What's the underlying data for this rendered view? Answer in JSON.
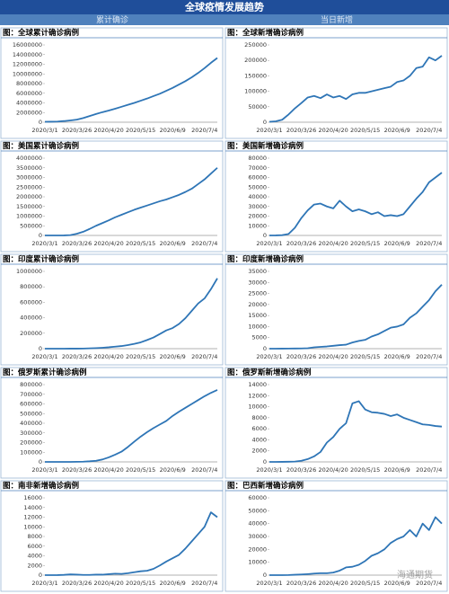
{
  "header": {
    "title": "全球疫情发展趋势",
    "left": "累计确诊",
    "right": "当日新增"
  },
  "watermark": "海通期货",
  "chart_data": [
    {
      "type": "line",
      "title": "图：全球累计确诊病例",
      "color": "#2e75b6",
      "categories": [
        "2020/3/1",
        null,
        null,
        null,
        null,
        "2020/3/26",
        null,
        null,
        null,
        null,
        "2020/4/20",
        null,
        null,
        null,
        null,
        "2020/5/15",
        null,
        null,
        null,
        null,
        "2020/6/9",
        null,
        null,
        null,
        null,
        "2020/7/4",
        null,
        null
      ],
      "values": [
        88000,
        105000,
        145000,
        240000,
        380000,
        530000,
        860000,
        1270000,
        1700000,
        2080000,
        2420000,
        2800000,
        3200000,
        3600000,
        4000000,
        4450000,
        4900000,
        5400000,
        5900000,
        6500000,
        7100000,
        7800000,
        8500000,
        9300000,
        10200000,
        11200000,
        12300000,
        13300000
      ],
      "ylim": [
        0,
        16000000
      ],
      "yticks": [
        0,
        2000000,
        4000000,
        6000000,
        8000000,
        10000000,
        12000000,
        14000000,
        16000000
      ]
    },
    {
      "type": "line",
      "title": "图：全球新增确诊病例",
      "color": "#2e75b6",
      "categories": [
        "2020/3/1",
        null,
        null,
        null,
        null,
        "2020/3/26",
        null,
        null,
        null,
        null,
        "2020/4/20",
        null,
        null,
        null,
        null,
        "2020/5/15",
        null,
        null,
        null,
        null,
        "2020/6/9",
        null,
        null,
        null,
        null,
        "2020/7/4",
        null,
        null
      ],
      "values": [
        1500,
        3000,
        8000,
        25000,
        45000,
        62000,
        80000,
        85000,
        78000,
        90000,
        80000,
        85000,
        75000,
        90000,
        95000,
        95000,
        100000,
        105000,
        110000,
        115000,
        130000,
        135000,
        150000,
        175000,
        180000,
        210000,
        200000,
        215000
      ],
      "ylim": [
        0,
        250000
      ],
      "yticks": [
        0,
        50000,
        100000,
        150000,
        200000,
        250000
      ]
    },
    {
      "type": "line",
      "title": "图：美国累计确诊病例",
      "color": "#2e75b6",
      "categories": [
        "2020/3/1",
        null,
        null,
        null,
        null,
        "2020/3/26",
        null,
        null,
        null,
        null,
        "2020/4/20",
        null,
        null,
        null,
        null,
        "2020/5/15",
        null,
        null,
        null,
        null,
        "2020/6/9",
        null,
        null,
        null,
        null,
        "2020/7/4",
        null,
        null
      ],
      "values": [
        70,
        260,
        700,
        3500,
        19000,
        85000,
        190000,
        337000,
        500000,
        640000,
        780000,
        940000,
        1070000,
        1200000,
        1330000,
        1440000,
        1550000,
        1660000,
        1770000,
        1860000,
        1980000,
        2100000,
        2250000,
        2420000,
        2660000,
        2900000,
        3200000,
        3500000
      ],
      "ylim": [
        0,
        4000000
      ],
      "yticks": [
        0,
        500000,
        1000000,
        1500000,
        2000000,
        2500000,
        3000000,
        3500000,
        4000000
      ]
    },
    {
      "type": "line",
      "title": "图：美国新增确诊病例",
      "color": "#2e75b6",
      "categories": [
        "2020/3/1",
        null,
        null,
        null,
        null,
        "2020/3/26",
        null,
        null,
        null,
        null,
        "2020/4/20",
        null,
        null,
        null,
        null,
        "2020/5/15",
        null,
        null,
        null,
        null,
        "2020/6/9",
        null,
        null,
        null,
        null,
        "2020/7/4",
        null,
        null
      ],
      "values": [
        20,
        50,
        300,
        1500,
        8000,
        18000,
        26000,
        32000,
        33000,
        30000,
        28000,
        36000,
        30000,
        25000,
        27000,
        25000,
        22000,
        24000,
        20000,
        21000,
        20000,
        22000,
        30000,
        38000,
        45000,
        55000,
        60000,
        65000
      ],
      "ylim": [
        0,
        80000
      ],
      "yticks": [
        0,
        10000,
        20000,
        30000,
        40000,
        50000,
        60000,
        70000,
        80000
      ]
    },
    {
      "type": "line",
      "title": "图：印度累计确诊病例",
      "color": "#2e75b6",
      "categories": [
        "2020/3/1",
        null,
        null,
        null,
        null,
        "2020/3/26",
        null,
        null,
        null,
        null,
        "2020/4/20",
        null,
        null,
        null,
        null,
        "2020/5/15",
        null,
        null,
        null,
        null,
        "2020/6/9",
        null,
        null,
        null,
        null,
        "2020/7/4",
        null,
        null
      ],
      "values": [
        3,
        30,
        110,
        300,
        600,
        700,
        1400,
        4000,
        7600,
        12000,
        18000,
        26000,
        34000,
        46000,
        62000,
        82000,
        112000,
        145000,
        190000,
        236000,
        267000,
        320000,
        395000,
        490000,
        585000,
        650000,
        770000,
        910000
      ],
      "ylim": [
        0,
        1000000
      ],
      "yticks": [
        0,
        200000,
        400000,
        600000,
        800000,
        1000000
      ]
    },
    {
      "type": "line",
      "title": "图：印度新增确诊病例",
      "color": "#2e75b6",
      "categories": [
        "2020/3/1",
        null,
        null,
        null,
        null,
        "2020/3/26",
        null,
        null,
        null,
        null,
        "2020/4/20",
        null,
        null,
        null,
        null,
        "2020/5/15",
        null,
        null,
        null,
        null,
        "2020/6/9",
        null,
        null,
        null,
        null,
        "2020/7/4",
        null,
        null
      ],
      "values": [
        0,
        5,
        20,
        40,
        80,
        90,
        200,
        600,
        800,
        1000,
        1300,
        1600,
        1800,
        2800,
        3500,
        4000,
        5500,
        6500,
        8000,
        9500,
        10000,
        11000,
        14000,
        16000,
        19000,
        22000,
        26000,
        29000
      ],
      "ylim": [
        0,
        35000
      ],
      "yticks": [
        0,
        5000,
        10000,
        15000,
        20000,
        25000,
        30000,
        35000
      ]
    },
    {
      "type": "line",
      "title": "图：俄罗斯累计确诊病例",
      "color": "#2e75b6",
      "categories": [
        "2020/3/1",
        null,
        null,
        null,
        null,
        "2020/3/26",
        null,
        null,
        null,
        null,
        "2020/4/20",
        null,
        null,
        null,
        null,
        "2020/5/15",
        null,
        null,
        null,
        null,
        "2020/6/9",
        null,
        null,
        null,
        null,
        "2020/7/4",
        null,
        null
      ],
      "values": [
        0,
        10,
        20,
        60,
        300,
        800,
        2300,
        6300,
        12000,
        25000,
        47000,
        75000,
        106000,
        155000,
        210000,
        262000,
        308000,
        350000,
        387000,
        424000,
        476000,
        520000,
        560000,
        600000,
        640000,
        680000,
        715000,
        745000
      ],
      "ylim": [
        0,
        800000
      ],
      "yticks": [
        0,
        100000,
        200000,
        300000,
        400000,
        500000,
        600000,
        700000,
        800000
      ]
    },
    {
      "type": "line",
      "title": "图：俄罗斯新增确诊病例",
      "color": "#2e75b6",
      "categories": [
        "2020/3/1",
        null,
        null,
        null,
        null,
        "2020/3/26",
        null,
        null,
        null,
        null,
        "2020/4/20",
        null,
        null,
        null,
        null,
        "2020/5/15",
        null,
        null,
        null,
        null,
        "2020/6/9",
        null,
        null,
        null,
        null,
        "2020/7/4",
        null,
        null
      ],
      "values": [
        0,
        0,
        10,
        30,
        60,
        200,
        500,
        1000,
        1800,
        3500,
        4500,
        6000,
        7000,
        10600,
        11000,
        9500,
        9000,
        8900,
        8700,
        8300,
        8600,
        8000,
        7600,
        7200,
        6800,
        6700,
        6500,
        6400
      ],
      "ylim": [
        0,
        14000
      ],
      "yticks": [
        0,
        2000,
        4000,
        6000,
        8000,
        10000,
        12000,
        14000
      ]
    },
    {
      "type": "line",
      "title": "图：南非新增确诊病例",
      "color": "#2e75b6",
      "categories": [
        "2020/3/1",
        null,
        null,
        null,
        null,
        "2020/3/26",
        null,
        null,
        null,
        null,
        "2020/4/20",
        null,
        null,
        null,
        null,
        "2020/5/15",
        null,
        null,
        null,
        null,
        "2020/6/9",
        null,
        null,
        null,
        null,
        "2020/7/4",
        null,
        null
      ],
      "values": [
        0,
        0,
        10,
        60,
        150,
        100,
        50,
        50,
        100,
        100,
        200,
        300,
        250,
        400,
        600,
        800,
        900,
        1300,
        2000,
        2800,
        3500,
        4200,
        5500,
        7000,
        8500,
        10000,
        13000,
        12000
      ],
      "ylim": [
        0,
        16000
      ],
      "yticks": [
        0,
        2000,
        4000,
        6000,
        8000,
        10000,
        12000,
        14000,
        16000
      ]
    },
    {
      "type": "line",
      "title": "图：巴西新增确诊病例",
      "color": "#2e75b6",
      "categories": [
        "2020/3/1",
        null,
        null,
        null,
        null,
        "2020/3/26",
        null,
        null,
        null,
        null,
        "2020/4/20",
        null,
        null,
        null,
        null,
        "2020/5/15",
        null,
        null,
        null,
        null,
        "2020/6/9",
        null,
        null,
        null,
        null,
        "2020/7/4",
        null,
        null
      ],
      "values": [
        0,
        0,
        20,
        100,
        300,
        500,
        800,
        1200,
        1500,
        1500,
        2000,
        3500,
        6000,
        6500,
        8000,
        11000,
        15000,
        17000,
        20000,
        25000,
        28000,
        30000,
        35000,
        30000,
        40000,
        35000,
        45000,
        40000
      ],
      "ylim": [
        0,
        60000
      ],
      "yticks": [
        0,
        10000,
        20000,
        30000,
        40000,
        50000,
        60000
      ]
    }
  ]
}
